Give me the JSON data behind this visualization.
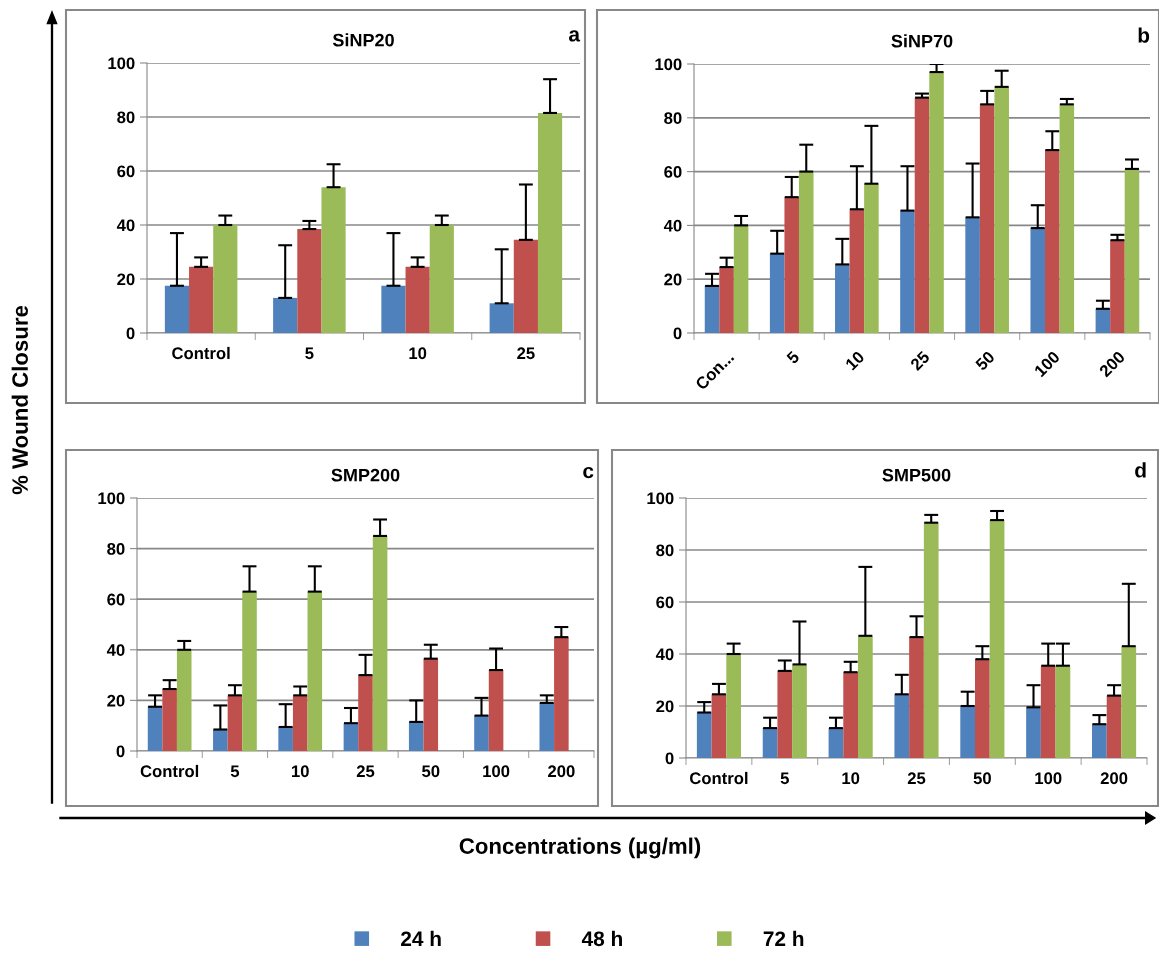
{
  "chart_data": [
    {
      "type": "bar",
      "title": "SiNP20",
      "xlabel": "Concentrations (µg/ml)",
      "ylabel": "% Wound Closure",
      "annotations": [
        "a"
      ],
      "categories": [
        "Control",
        "5",
        "10",
        "25"
      ],
      "ylim": [
        0,
        100
      ],
      "yticks": [
        0,
        20,
        40,
        60,
        80,
        100
      ],
      "grid": "y",
      "legend": "bottom",
      "series": [
        {
          "name": "24 h",
          "color": "#4f81bd",
          "values": [
            17.5,
            13,
            17.5,
            11
          ],
          "errors": [
            [
              17.5,
              37
            ],
            [
              13,
              32.5
            ],
            [
              17.5,
              37
            ],
            [
              11,
              31
            ]
          ]
        },
        {
          "name": "48 h",
          "color": "#c0504d",
          "values": [
            24.5,
            38.5,
            24.5,
            34.5
          ],
          "errors": [
            [
              24.5,
              28
            ],
            [
              38.5,
              41.5
            ],
            [
              24.5,
              28
            ],
            [
              34.5,
              55
            ]
          ]
        },
        {
          "name": "72 h",
          "color": "#9bbb59",
          "values": [
            40,
            54,
            40,
            81.5
          ],
          "errors": [
            [
              40,
              43.5
            ],
            [
              54,
              62.5
            ],
            [
              40,
              43.5
            ],
            [
              81.5,
              94
            ]
          ]
        }
      ]
    },
    {
      "type": "bar",
      "title": "SiNP70",
      "annotations": [
        "b"
      ],
      "categories": [
        "Con...",
        "5",
        "10",
        "25",
        "50",
        "100",
        "200"
      ],
      "ylim": [
        0,
        100
      ],
      "yticks": [
        0,
        20,
        40,
        60,
        80,
        100
      ],
      "grid": "y",
      "series": [
        {
          "color": "#4f81bd",
          "values": [
            17.5,
            29.5,
            25.5,
            45.5,
            43,
            39,
            9
          ],
          "errors": [
            [
              17.5,
              22
            ],
            [
              29.5,
              38
            ],
            [
              25.5,
              35
            ],
            [
              45.5,
              62
            ],
            [
              43,
              63
            ],
            [
              39,
              47.5
            ],
            [
              9,
              12
            ]
          ]
        },
        {
          "color": "#c0504d",
          "values": [
            24.5,
            50.5,
            46,
            87.5,
            85,
            68,
            34.5
          ],
          "errors": [
            [
              24.5,
              28
            ],
            [
              50.5,
              58
            ],
            [
              46,
              62
            ],
            [
              87.5,
              89
            ],
            [
              85,
              90
            ],
            [
              68,
              75
            ],
            [
              34.5,
              36.5
            ]
          ]
        },
        {
          "color": "#9bbb59",
          "values": [
            40,
            60,
            55.5,
            97,
            91.5,
            85,
            61
          ],
          "errors": [
            [
              40,
              43.5
            ],
            [
              60,
              70
            ],
            [
              55.5,
              77
            ],
            [
              97,
              100
            ],
            [
              91.5,
              97.5
            ],
            [
              85,
              87
            ],
            [
              61,
              64.5
            ]
          ]
        }
      ]
    },
    {
      "type": "bar",
      "title": "SMP200",
      "annotations": [
        "c"
      ],
      "categories": [
        "Control",
        "5",
        "10",
        "25",
        "50",
        "100",
        "200"
      ],
      "ylim": [
        0,
        100
      ],
      "yticks": [
        0,
        20,
        40,
        60,
        80,
        100
      ],
      "grid": "y",
      "series": [
        {
          "color": "#4f81bd",
          "values": [
            17.5,
            8.5,
            9.5,
            11,
            11.5,
            14,
            19
          ],
          "errors": [
            [
              17.5,
              22
            ],
            [
              8.5,
              18
            ],
            [
              9.5,
              18.5
            ],
            [
              11,
              17
            ],
            [
              11.5,
              20
            ],
            [
              14,
              21
            ],
            [
              19,
              22
            ]
          ]
        },
        {
          "color": "#c0504d",
          "values": [
            24.5,
            22,
            22,
            30,
            36.5,
            32,
            45
          ],
          "errors": [
            [
              24.5,
              28
            ],
            [
              22,
              26
            ],
            [
              22,
              25.5
            ],
            [
              30,
              38
            ],
            [
              36.5,
              42
            ],
            [
              32,
              40.5
            ],
            [
              45,
              49
            ]
          ]
        },
        {
          "color": "#9bbb59",
          "values": [
            40,
            63,
            63,
            85,
            null,
            null,
            null
          ],
          "errors": [
            [
              40,
              43.5
            ],
            [
              63,
              73
            ],
            [
              63,
              73
            ],
            [
              85,
              91.5
            ],
            null,
            null,
            null
          ]
        }
      ]
    },
    {
      "type": "bar",
      "title": "SMP500",
      "annotations": [
        "d"
      ],
      "categories": [
        "Control",
        "5",
        "10",
        "25",
        "50",
        "100",
        "200"
      ],
      "ylim": [
        0,
        100
      ],
      "yticks": [
        0,
        20,
        40,
        60,
        80,
        100
      ],
      "grid": "y",
      "series": [
        {
          "color": "#4f81bd",
          "values": [
            17.5,
            11.5,
            11.5,
            24.5,
            20,
            19.5,
            13
          ],
          "errors": [
            [
              17.5,
              21.5
            ],
            [
              11.5,
              15.5
            ],
            [
              11.5,
              15.5
            ],
            [
              24.5,
              32
            ],
            [
              20,
              25.5
            ],
            [
              19.5,
              28
            ],
            [
              13,
              16.5
            ]
          ]
        },
        {
          "color": "#c0504d",
          "values": [
            24.5,
            33.5,
            33,
            46.5,
            38,
            35.5,
            24
          ],
          "errors": [
            [
              24.5,
              28.5
            ],
            [
              33.5,
              37.5
            ],
            [
              33,
              37
            ],
            [
              46.5,
              54.5
            ],
            [
              38,
              43
            ],
            [
              35.5,
              44
            ],
            [
              24,
              28
            ]
          ]
        },
        {
          "color": "#9bbb59",
          "values": [
            40,
            36,
            47,
            90.5,
            91.5,
            35.5,
            43
          ],
          "errors": [
            [
              40,
              44
            ],
            [
              36,
              52.5
            ],
            [
              47,
              73.5
            ],
            [
              90.5,
              93.5
            ],
            [
              91.5,
              95
            ],
            [
              35.5,
              44
            ],
            [
              43,
              67
            ]
          ]
        }
      ]
    }
  ]
}
